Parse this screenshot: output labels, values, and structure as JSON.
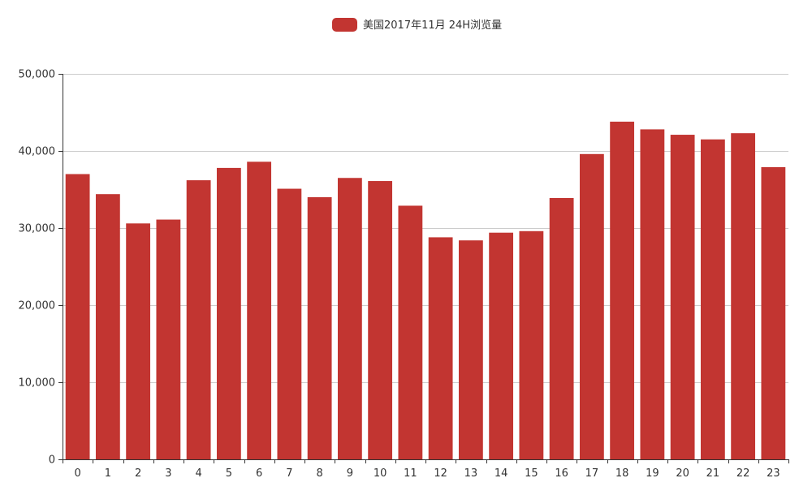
{
  "chart_data": {
    "type": "bar",
    "categories": [
      "0",
      "1",
      "2",
      "3",
      "4",
      "5",
      "6",
      "7",
      "8",
      "9",
      "10",
      "11",
      "12",
      "13",
      "14",
      "15",
      "16",
      "17",
      "18",
      "19",
      "20",
      "21",
      "22",
      "23"
    ],
    "series": [
      {
        "name": "美国2017年11月 24H浏览量",
        "color": "#c23531",
        "values": [
          37000,
          34400,
          30600,
          31100,
          36200,
          37800,
          38600,
          35100,
          34000,
          36500,
          36100,
          32900,
          28800,
          28400,
          29400,
          29600,
          33900,
          39600,
          43800,
          42800,
          42100,
          41500,
          42300,
          37900
        ]
      }
    ],
    "ylim": [
      0,
      50000
    ],
    "yticks": [
      0,
      10000,
      20000,
      30000,
      40000,
      50000
    ],
    "ytick_labels": [
      "0",
      "10,000",
      "20,000",
      "30,000",
      "40,000",
      "50,000"
    ],
    "grid": true,
    "legend_position": "top-center"
  }
}
